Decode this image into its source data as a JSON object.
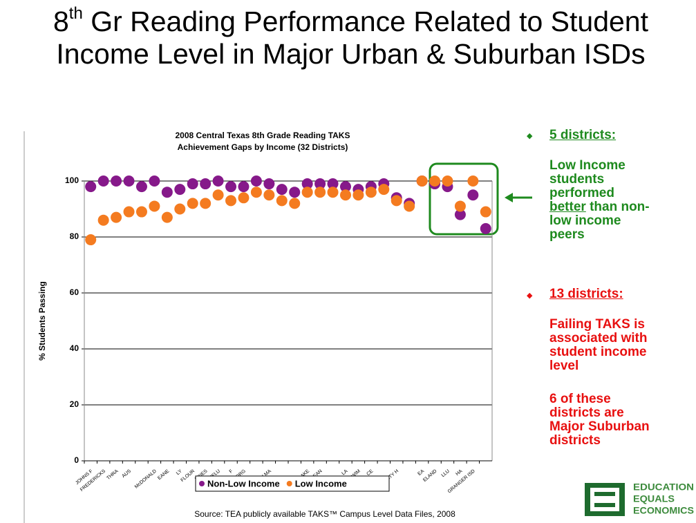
{
  "slide_title": {
    "number": "8",
    "sup": "th",
    "rest": " Gr Reading Performance Related to Student Income Level in Major Urban & Suburban ISDs"
  },
  "chart_data": {
    "type": "scatter",
    "title": [
      "2008 Central Texas 8th Grade Reading TAKS",
      "Achievement Gaps by Income (32 Districts)"
    ],
    "y_label": "% Students Passing",
    "categories": [
      "JOHNS F",
      "FREDERICKS",
      "THRA",
      "AUS",
      null,
      "McDONALD",
      "EANE",
      "LY",
      "FLOUR",
      "ERIES",
      "PFLU",
      "F",
      "GEORG",
      null,
      "SAN MA",
      null,
      null,
      "LAKE",
      "EAN",
      null,
      "LA",
      "WIM",
      "CE",
      null,
      "LIBERTY H",
      null,
      "EA",
      "ELAND",
      "LLU",
      "HA",
      "GRANGER ISD",
      null
    ],
    "series": [
      {
        "name": "Non-Low Income",
        "color": "#86198a",
        "values": [
          98,
          100,
          100,
          100,
          98,
          100,
          96,
          97,
          99,
          99,
          100,
          98,
          98,
          100,
          99,
          97,
          96,
          99,
          99,
          99,
          98,
          97,
          98,
          99,
          94,
          92,
          100,
          99,
          98,
          88,
          95,
          83
        ]
      },
      {
        "name": "Low Income",
        "color": "#f47b20",
        "values": [
          79,
          86,
          87,
          89,
          89,
          91,
          87,
          90,
          92,
          92,
          95,
          93,
          94,
          96,
          95,
          93,
          92,
          96,
          96,
          96,
          95,
          95,
          96,
          97,
          93,
          91,
          100,
          100,
          100,
          91,
          100,
          89
        ]
      }
    ],
    "ylim": [
      0,
      100
    ],
    "yticks": [
      0,
      20,
      40,
      60,
      80,
      100
    ],
    "grid": true,
    "legend": "bottom",
    "source": "Source: TEA publicly available TAKS™ Campus Level Data Files, 2008"
  },
  "panel": {
    "green_heading": "5 districts:",
    "green_text": [
      "Low Income students performed",
      "better",
      "than non-low income peers"
    ],
    "red_heading": "13 districts:",
    "red_text": "Failing TAKS is associated with student income level",
    "red_text2": "6 of these districts are Major Suburban districts"
  },
  "logo": [
    "EDUCATION",
    "EQUALS",
    "ECONOMICS"
  ]
}
